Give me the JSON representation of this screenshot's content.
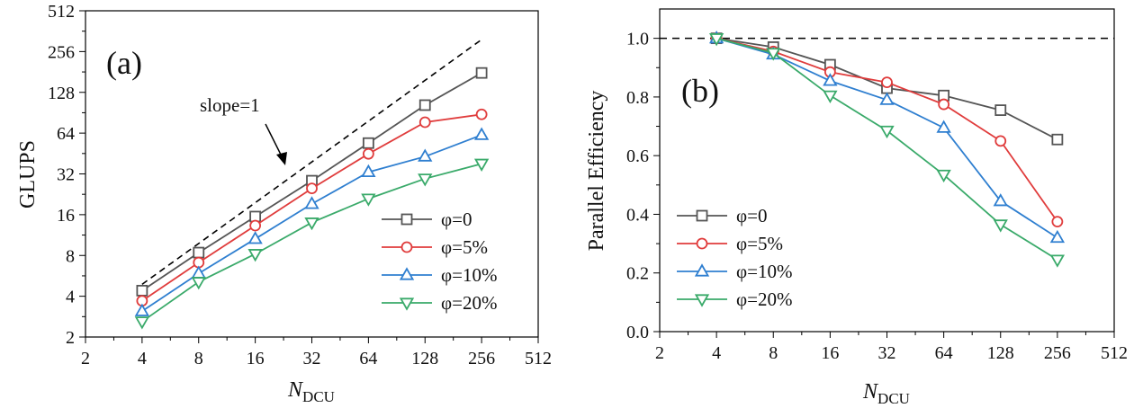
{
  "chart_data": [
    {
      "panel": "(a)",
      "type": "line",
      "xlabel": "N",
      "xlabel_sub": "DCU",
      "ylabel": "GLUPS",
      "xscale": "log2",
      "yscale": "log2",
      "xlim": [
        2,
        512
      ],
      "ylim": [
        2,
        512
      ],
      "x_ticks": [
        2,
        4,
        8,
        16,
        32,
        64,
        128,
        256,
        512
      ],
      "y_ticks": [
        2,
        4,
        8,
        16,
        32,
        64,
        128,
        256,
        512
      ],
      "x": [
        4,
        8,
        16,
        32,
        64,
        128,
        256
      ],
      "series": [
        {
          "name": "φ=0",
          "color": "#555555",
          "marker": "square",
          "values": [
            4.4,
            8.4,
            15.5,
            28.5,
            54,
            103,
            178
          ]
        },
        {
          "name": "φ=5%",
          "color": "#e03c3c",
          "marker": "circle",
          "values": [
            3.7,
            7.1,
            13.3,
            25,
            45,
            77,
            88
          ]
        },
        {
          "name": "φ=10%",
          "color": "#2f7fd0",
          "marker": "triangle-up",
          "values": [
            3.1,
            5.9,
            10.6,
            19.2,
            33,
            43,
            62
          ]
        },
        {
          "name": "φ=20%",
          "color": "#3aaa6a",
          "marker": "triangle-down",
          "values": [
            2.6,
            5.1,
            8.2,
            14,
            21,
            29.5,
            38
          ]
        }
      ],
      "reference_line": {
        "label": "slope=1",
        "style": "dashed",
        "x": [
          4,
          256
        ],
        "y": [
          4.9,
          314
        ]
      },
      "legend_placement": "bottom-right"
    },
    {
      "panel": "(b)",
      "type": "line",
      "xlabel": "N",
      "xlabel_sub": "DCU",
      "ylabel": "Parallel Efficiency",
      "xscale": "log2",
      "yscale": "linear",
      "xlim": [
        2,
        512
      ],
      "ylim": [
        0.0,
        1.1
      ],
      "x_ticks": [
        2,
        4,
        8,
        16,
        32,
        64,
        128,
        256,
        512
      ],
      "y_ticks": [
        "0.0",
        "0.2",
        "0.4",
        "0.6",
        "0.8",
        "1.0"
      ],
      "x": [
        4,
        8,
        16,
        32,
        64,
        128,
        256
      ],
      "series": [
        {
          "name": "φ=0",
          "color": "#555555",
          "marker": "square",
          "values": [
            1.0,
            0.97,
            0.91,
            0.83,
            0.805,
            0.755,
            0.655
          ]
        },
        {
          "name": "φ=5%",
          "color": "#e03c3c",
          "marker": "circle",
          "values": [
            1.0,
            0.955,
            0.885,
            0.85,
            0.775,
            0.65,
            0.375
          ]
        },
        {
          "name": "φ=10%",
          "color": "#2f7fd0",
          "marker": "triangle-up",
          "values": [
            1.0,
            0.945,
            0.855,
            0.79,
            0.695,
            0.445,
            0.32
          ]
        },
        {
          "name": "φ=20%",
          "color": "#3aaa6a",
          "marker": "triangle-down",
          "values": [
            1.0,
            0.95,
            0.805,
            0.685,
            0.535,
            0.365,
            0.245
          ]
        }
      ],
      "reference_line": {
        "style": "dashed",
        "y": 1.0
      },
      "legend_placement": "bottom-left"
    }
  ]
}
